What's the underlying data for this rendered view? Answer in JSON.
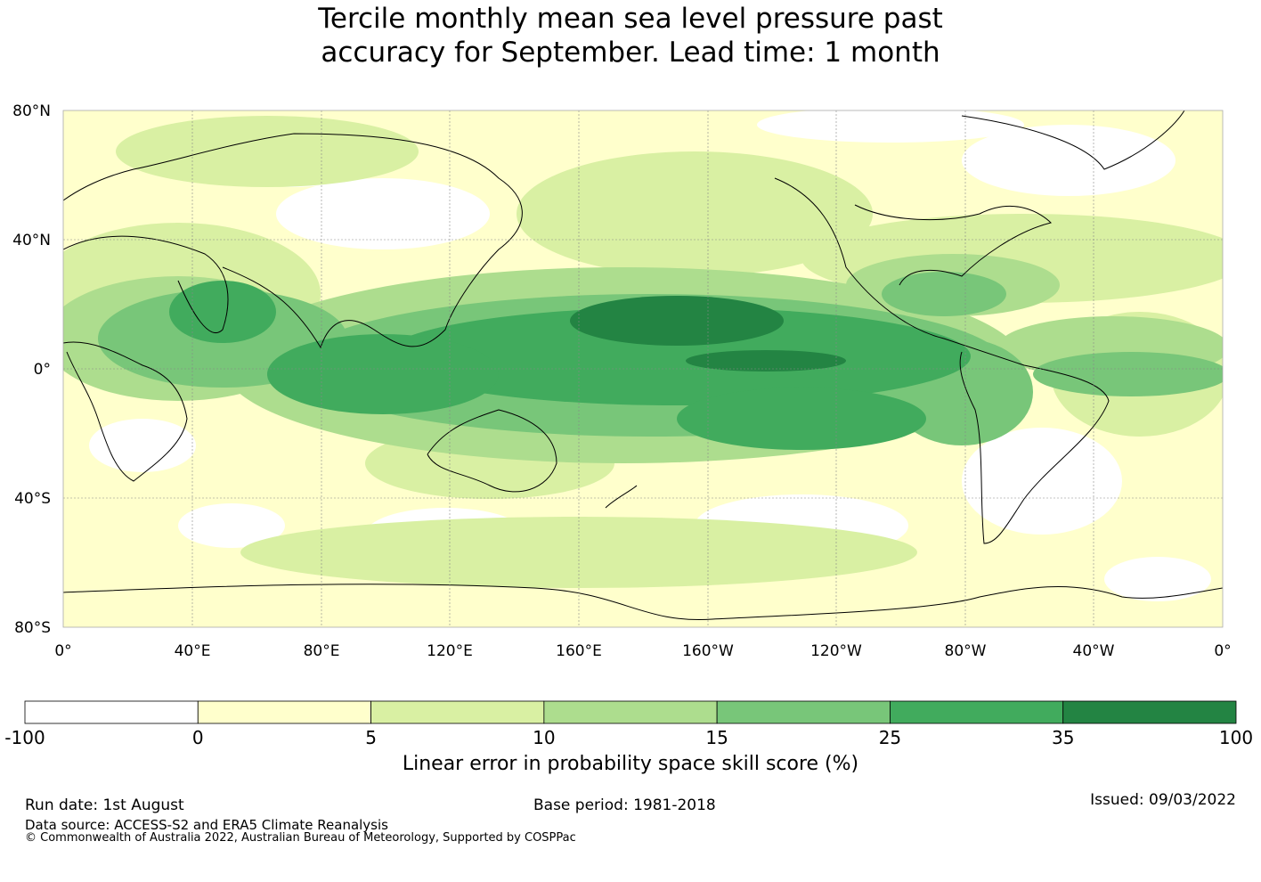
{
  "title_line1": "Tercile monthly mean sea level pressure past",
  "title_line2": "accuracy for September. Lead time: 1 month",
  "map": {
    "lat_labels": [
      "80°N",
      "40°N",
      "0°",
      "40°S",
      "80°S"
    ],
    "lon_labels": [
      "0°",
      "40°E",
      "80°E",
      "120°E",
      "160°E",
      "160°W",
      "120°W",
      "80°W",
      "40°W",
      "0°"
    ]
  },
  "colorbar": {
    "label": "Linear error in probability space skill score (%)",
    "ticks": [
      "-100",
      "0",
      "5",
      "10",
      "15",
      "25",
      "35",
      "100"
    ],
    "colors": [
      "#ffffff",
      "#ffffcc",
      "#d9f0a3",
      "#addd8e",
      "#78c679",
      "#41ab5d",
      "#238443"
    ]
  },
  "footer": {
    "run_date": "Run date: 1st August",
    "base_period": "Base period: 1981-2018",
    "issued": "Issued: 09/03/2022",
    "data_source": "Data source: ACCESS-S2 and ERA5 Climate Reanalysis",
    "copyright": "© Commonwealth of Australia 2022, Australian Bureau of Meteorology, Supported by COSPPac"
  }
}
